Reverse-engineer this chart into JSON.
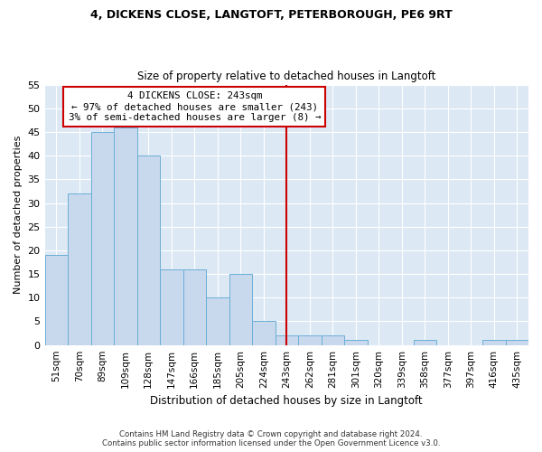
{
  "title1": "4, DICKENS CLOSE, LANGTOFT, PETERBOROUGH, PE6 9RT",
  "title2": "Size of property relative to detached houses in Langtoft",
  "xlabel": "Distribution of detached houses by size in Langtoft",
  "ylabel": "Number of detached properties",
  "categories": [
    "51sqm",
    "70sqm",
    "89sqm",
    "109sqm",
    "128sqm",
    "147sqm",
    "166sqm",
    "185sqm",
    "205sqm",
    "224sqm",
    "243sqm",
    "262sqm",
    "281sqm",
    "301sqm",
    "320sqm",
    "339sqm",
    "358sqm",
    "377sqm",
    "397sqm",
    "416sqm",
    "435sqm"
  ],
  "values": [
    19,
    32,
    45,
    46,
    40,
    16,
    16,
    10,
    15,
    5,
    2,
    2,
    2,
    1,
    0,
    0,
    1,
    0,
    0,
    1,
    1
  ],
  "bar_color": "#c8d9ee",
  "bar_edge_color": "#6baed6",
  "marker_index": 10,
  "marker_color": "#cc0000",
  "annotation_line1": "4 DICKENS CLOSE: 243sqm",
  "annotation_line2": "← 97% of detached houses are smaller (243)",
  "annotation_line3": "3% of semi-detached houses are larger (8) →",
  "annotation_box_color": "#ffffff",
  "annotation_box_edge": "#cc0000",
  "ylim": [
    0,
    55
  ],
  "yticks": [
    0,
    5,
    10,
    15,
    20,
    25,
    30,
    35,
    40,
    45,
    50,
    55
  ],
  "plot_bg": "#dce9f5",
  "footer_line1": "Contains HM Land Registry data © Crown copyright and database right 2024.",
  "footer_line2": "Contains public sector information licensed under the Open Government Licence v3.0."
}
